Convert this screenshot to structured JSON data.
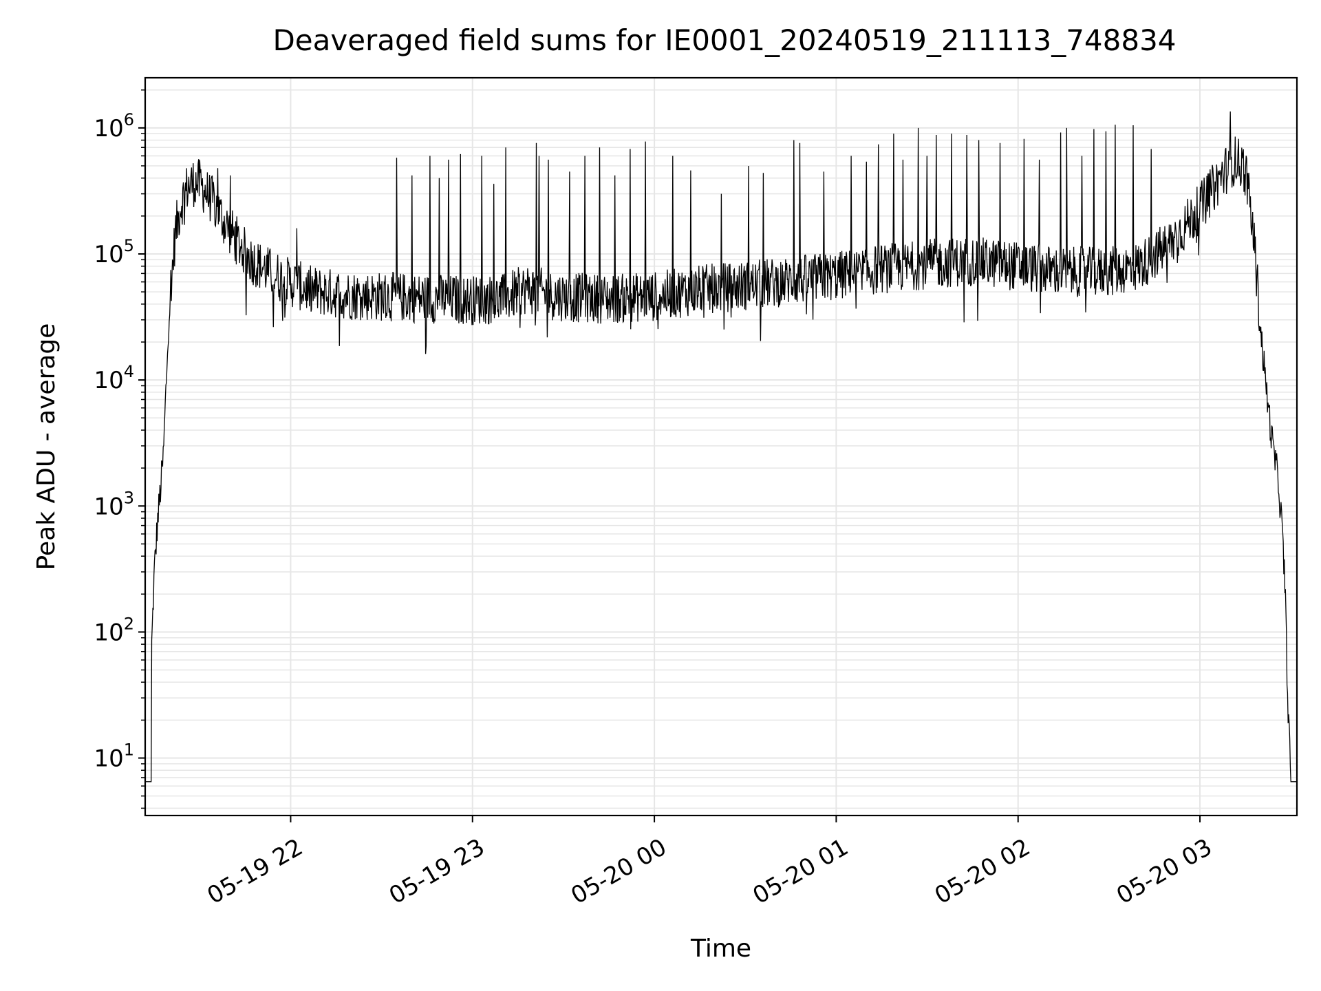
{
  "chart_data": {
    "type": "line",
    "title": "Deaveraged field sums for IE0001_20240519_211113_748834",
    "xlabel": "Time",
    "ylabel": "Peak ADU - average",
    "yscale": "log",
    "ylim": [
      3.5,
      2500000
    ],
    "xlim": [
      "05-19 21:12",
      "05-20 03:32"
    ],
    "grid": true,
    "line_color": "#000000",
    "grid_color": "#e6e6e6",
    "x_ticks": [
      {
        "label": "05-19 22",
        "t": "05-19 22:00"
      },
      {
        "label": "05-19 23",
        "t": "05-19 23:00"
      },
      {
        "label": "05-20 00",
        "t": "05-20 00:00"
      },
      {
        "label": "05-20 01",
        "t": "05-20 01:00"
      },
      {
        "label": "05-20 02",
        "t": "05-20 02:00"
      },
      {
        "label": "05-20 03",
        "t": "05-20 03:00"
      }
    ],
    "y_ticks": [
      {
        "base": "10",
        "exp": "1",
        "value": 10
      },
      {
        "base": "10",
        "exp": "2",
        "value": 100
      },
      {
        "base": "10",
        "exp": "3",
        "value": 1000
      },
      {
        "base": "10",
        "exp": "4",
        "value": 10000
      },
      {
        "base": "10",
        "exp": "5",
        "value": 100000
      },
      {
        "base": "10",
        "exp": "6",
        "value": 1000000
      }
    ],
    "series": [
      {
        "baseline": {
          "t": [
            "05-19 21:12",
            "05-19 21:14",
            "05-19 21:14",
            "05-19 21:15",
            "05-19 21:16",
            "05-19 21:17",
            "05-19 21:18",
            "05-19 21:19",
            "05-19 21:20",
            "05-19 21:22",
            "05-19 21:24",
            "05-19 21:26",
            "05-19 21:28",
            "05-19 21:30",
            "05-19 21:32",
            "05-19 21:35",
            "05-19 21:38",
            "05-19 21:42",
            "05-19 21:46",
            "05-19 21:50",
            "05-19 21:54",
            "05-19 21:58",
            "05-19 22:02",
            "05-19 22:06",
            "05-19 22:10",
            "05-19 22:20",
            "05-19 22:30",
            "05-19 22:40",
            "05-19 22:50",
            "05-19 23:00",
            "05-19 23:10",
            "05-19 23:18",
            "05-19 23:26",
            "05-19 23:34",
            "05-19 23:45",
            "05-20 00:00",
            "05-20 00:15",
            "05-20 00:30",
            "05-20 00:45",
            "05-20 01:00",
            "05-20 01:15",
            "05-20 01:30",
            "05-20 01:45",
            "05-20 02:00",
            "05-20 02:15",
            "05-20 02:30",
            "05-20 02:40",
            "05-20 02:50",
            "05-20 03:00",
            "05-20 03:06",
            "05-20 03:10",
            "05-20 03:12",
            "05-20 03:15",
            "05-20 03:18",
            "05-20 03:20",
            "05-20 03:22",
            "05-20 03:24",
            "05-20 03:26",
            "05-20 03:27",
            "05-20 03:28",
            "05-20 03:29",
            "05-20 03:30",
            "05-20 03:32"
          ],
          "y": [
            6.5,
            6.5,
            60,
            300,
            700,
            1300,
            2500,
            10000,
            40000,
            150000,
            260000,
            340000,
            370000,
            360000,
            310000,
            250000,
            180000,
            130000,
            95000,
            80000,
            70000,
            62000,
            57000,
            52000,
            50000,
            47000,
            46000,
            45000,
            44000,
            43000,
            44000,
            53000,
            47000,
            45000,
            44000,
            46000,
            52000,
            56000,
            61000,
            67000,
            76000,
            83000,
            88000,
            80000,
            72000,
            72000,
            80000,
            120000,
            230000,
            380000,
            520000,
            560000,
            470000,
            120000,
            25000,
            8000,
            3000,
            1500,
            700,
            250,
            30,
            6.5,
            6.5
          ]
        },
        "spikes": {
          "t": [
            "05-19 21:36",
            "05-19 21:40",
            "05-19 22:02",
            "05-19 22:35",
            "05-19 22:40",
            "05-19 22:46",
            "05-19 22:49",
            "05-19 22:52",
            "05-19 22:56",
            "05-19 23:03",
            "05-19 23:07",
            "05-19 23:11",
            "05-19 23:21",
            "05-19 23:22",
            "05-19 23:25",
            "05-19 23:32",
            "05-19 23:37",
            "05-19 23:42",
            "05-19 23:47",
            "05-19 23:52",
            "05-19 23:57",
            "05-20 00:06",
            "05-20 00:12",
            "05-20 00:22",
            "05-20 00:31",
            "05-20 00:36",
            "05-20 00:46",
            "05-20 00:48",
            "05-20 00:56",
            "05-20 01:05",
            "05-20 01:10",
            "05-20 01:14",
            "05-20 01:19",
            "05-20 01:22",
            "05-20 01:27",
            "05-20 01:30",
            "05-20 01:33",
            "05-20 01:38",
            "05-20 01:43",
            "05-20 01:47",
            "05-20 01:54",
            "05-20 02:02",
            "05-20 02:07",
            "05-20 02:14",
            "05-20 02:16",
            "05-20 02:21",
            "05-20 02:25",
            "05-20 02:29",
            "05-20 02:32",
            "05-20 02:38",
            "05-20 02:44",
            "05-20 03:10"
          ],
          "y": [
            480000,
            420000,
            160000,
            580000,
            420000,
            600000,
            400000,
            560000,
            620000,
            600000,
            360000,
            700000,
            760000,
            600000,
            560000,
            450000,
            600000,
            700000,
            420000,
            680000,
            780000,
            600000,
            460000,
            300000,
            500000,
            440000,
            800000,
            760000,
            450000,
            600000,
            540000,
            740000,
            900000,
            560000,
            1000000,
            600000,
            880000,
            900000,
            880000,
            800000,
            760000,
            820000,
            560000,
            920000,
            1000000,
            600000,
            980000,
            940000,
            1060000,
            1050000,
            680000,
            1350000
          ]
        }
      }
    ]
  }
}
